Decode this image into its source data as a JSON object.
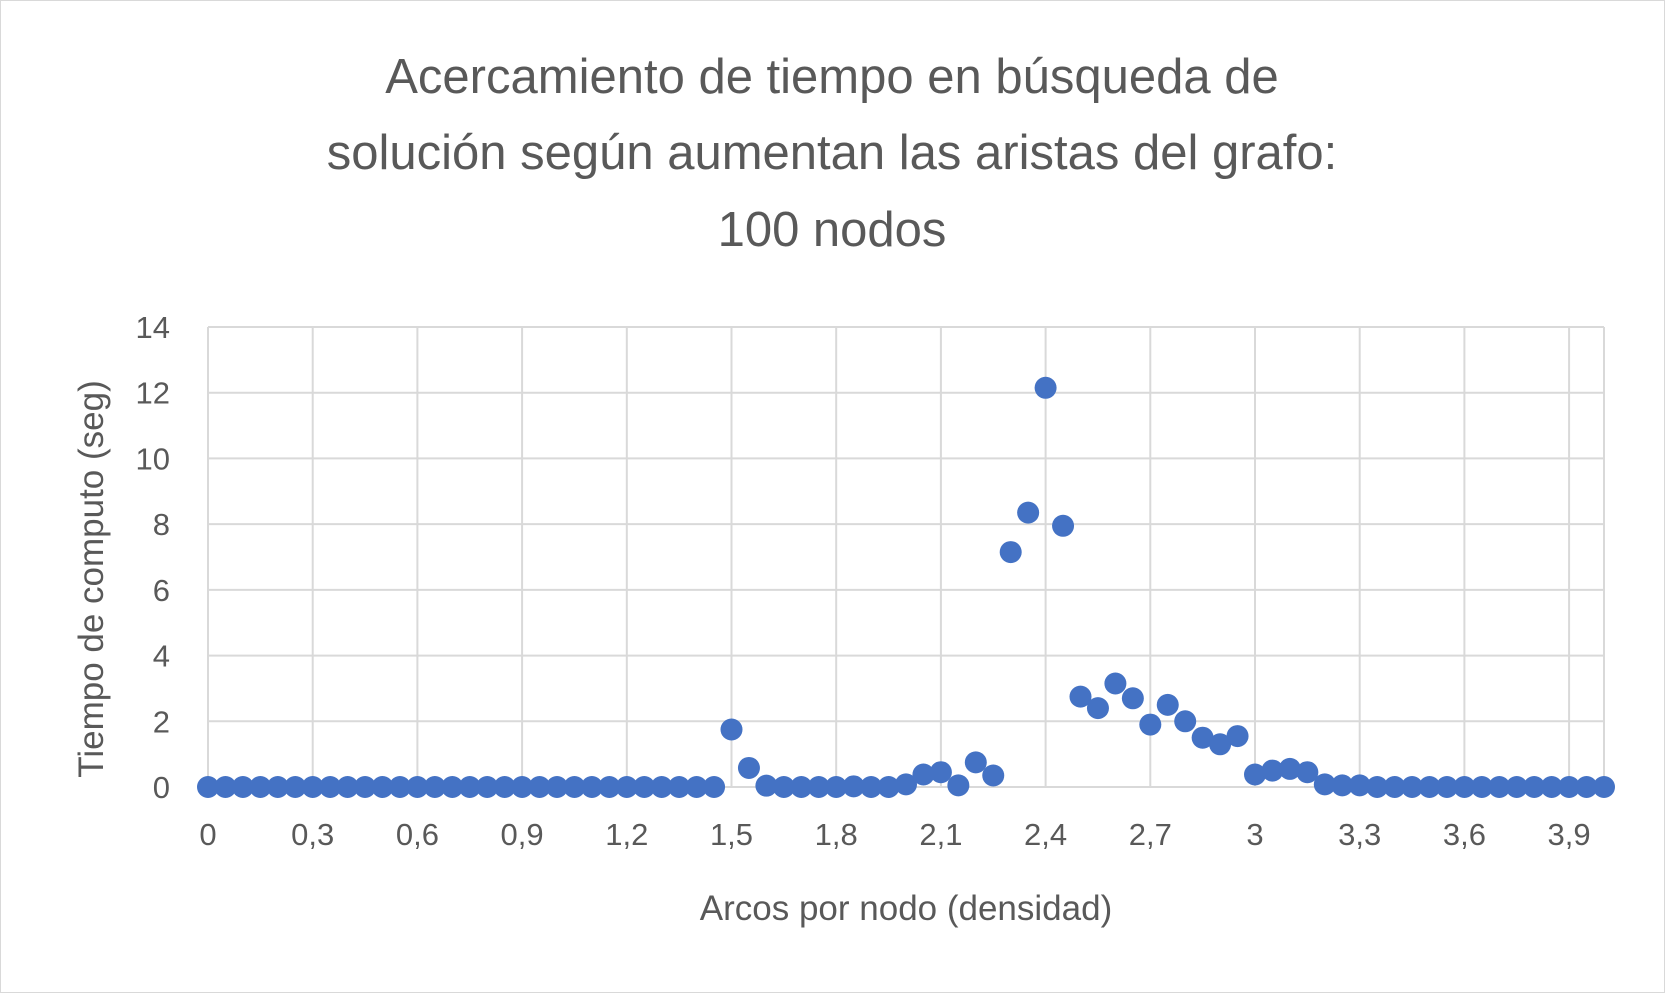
{
  "chart_data": {
    "type": "scatter",
    "title_lines": [
      "Acercamiento de tiempo en búsqueda de",
      "solución según aumentan las aristas del grafo:",
      "100 nodos"
    ],
    "xlabel": "Arcos por nodo (densidad)",
    "ylabel": "Tiempo de computo (seg)",
    "xlim": [
      0,
      4.0
    ],
    "ylim": [
      0,
      14
    ],
    "x_ticks": [
      "0",
      "0,3",
      "0,6",
      "0,9",
      "1,2",
      "1,5",
      "1,8",
      "2,1",
      "2,4",
      "2,7",
      "3",
      "3,3",
      "3,6",
      "3,9"
    ],
    "x_tick_values": [
      0,
      0.3,
      0.6,
      0.9,
      1.2,
      1.5,
      1.8,
      2.1,
      2.4,
      2.7,
      3.0,
      3.3,
      3.6,
      3.9
    ],
    "y_ticks": [
      "0",
      "2",
      "4",
      "6",
      "8",
      "10",
      "12",
      "14"
    ],
    "y_tick_values": [
      0,
      2,
      4,
      6,
      8,
      10,
      12,
      14
    ],
    "grid": true,
    "marker_color": "#4472c4",
    "series": [
      {
        "name": "Tiempo de computo",
        "points": [
          [
            0,
            0
          ],
          [
            0.05,
            0
          ],
          [
            0.1,
            0
          ],
          [
            0.15,
            0
          ],
          [
            0.2,
            0
          ],
          [
            0.25,
            0
          ],
          [
            0.3,
            0
          ],
          [
            0.35,
            0
          ],
          [
            0.4,
            0
          ],
          [
            0.45,
            0
          ],
          [
            0.5,
            0
          ],
          [
            0.55,
            0
          ],
          [
            0.6,
            0
          ],
          [
            0.65,
            0
          ],
          [
            0.7,
            0
          ],
          [
            0.75,
            0
          ],
          [
            0.8,
            0
          ],
          [
            0.85,
            0
          ],
          [
            0.9,
            0
          ],
          [
            0.95,
            0
          ],
          [
            1.0,
            0
          ],
          [
            1.05,
            0
          ],
          [
            1.1,
            0
          ],
          [
            1.15,
            0
          ],
          [
            1.2,
            0
          ],
          [
            1.25,
            0
          ],
          [
            1.3,
            0
          ],
          [
            1.35,
            0
          ],
          [
            1.4,
            0
          ],
          [
            1.45,
            0
          ],
          [
            1.5,
            1.75
          ],
          [
            1.55,
            0.58
          ],
          [
            1.6,
            0.04
          ],
          [
            1.65,
            0
          ],
          [
            1.7,
            0
          ],
          [
            1.75,
            0
          ],
          [
            1.8,
            0
          ],
          [
            1.85,
            0.02
          ],
          [
            1.9,
            0
          ],
          [
            1.95,
            0
          ],
          [
            2.0,
            0.08
          ],
          [
            2.05,
            0.38
          ],
          [
            2.1,
            0.45
          ],
          [
            2.15,
            0.05
          ],
          [
            2.2,
            0.75
          ],
          [
            2.25,
            0.35
          ],
          [
            2.3,
            7.15
          ],
          [
            2.35,
            8.35
          ],
          [
            2.4,
            12.15
          ],
          [
            2.45,
            7.95
          ],
          [
            2.5,
            2.75
          ],
          [
            2.55,
            2.4
          ],
          [
            2.6,
            3.15
          ],
          [
            2.65,
            2.7
          ],
          [
            2.7,
            1.9
          ],
          [
            2.75,
            2.5
          ],
          [
            2.8,
            2.0
          ],
          [
            2.85,
            1.5
          ],
          [
            2.9,
            1.3
          ],
          [
            2.95,
            1.55
          ],
          [
            3.0,
            0.38
          ],
          [
            3.05,
            0.5
          ],
          [
            3.1,
            0.55
          ],
          [
            3.15,
            0.45
          ],
          [
            3.2,
            0.08
          ],
          [
            3.25,
            0.05
          ],
          [
            3.3,
            0.05
          ],
          [
            3.35,
            0
          ],
          [
            3.4,
            0
          ],
          [
            3.45,
            0
          ],
          [
            3.5,
            0
          ],
          [
            3.55,
            0
          ],
          [
            3.6,
            0
          ],
          [
            3.65,
            0
          ],
          [
            3.7,
            0
          ],
          [
            3.75,
            0
          ],
          [
            3.8,
            0
          ],
          [
            3.85,
            0
          ],
          [
            3.9,
            0
          ],
          [
            3.95,
            0
          ],
          [
            4.0,
            0
          ]
        ]
      }
    ]
  }
}
